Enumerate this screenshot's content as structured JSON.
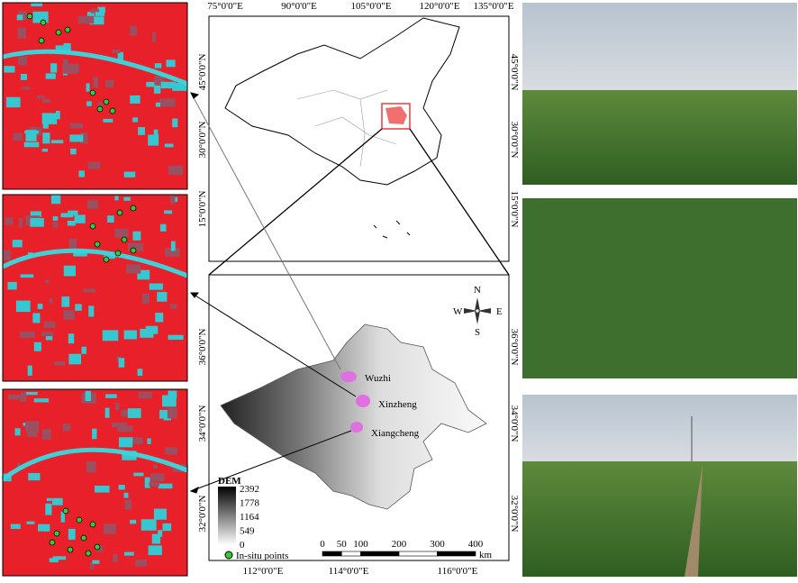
{
  "top_map": {
    "lon_labels": [
      "75°0'0\"E",
      "90°0'0\"E",
      "105°0'0\"E",
      "120°0'0\"E",
      "135°0'0\"E"
    ],
    "lat_labels": [
      "45°0'0\"N",
      "30°0'0\"N",
      "15°0'0\"N"
    ]
  },
  "bottom_map": {
    "lon_labels": [
      "112°0'0\"E",
      "114°0'0\"E",
      "116°0'0\"E"
    ],
    "lat_labels": [
      "36°0'0\"N",
      "34°0'0\"N",
      "32°0'0\"N"
    ],
    "sites": [
      "Wuzhi",
      "Xinzheng",
      "Xiangcheng"
    ],
    "compass": {
      "n": "N",
      "s": "S",
      "e": "E",
      "w": "W"
    },
    "legend": {
      "title": "DEM",
      "values": [
        2392,
        1778,
        1164,
        549,
        0
      ],
      "points": "In-situ points"
    },
    "scale": {
      "ticks": [
        0,
        50,
        100,
        200,
        300,
        400
      ],
      "unit": "km"
    }
  }
}
